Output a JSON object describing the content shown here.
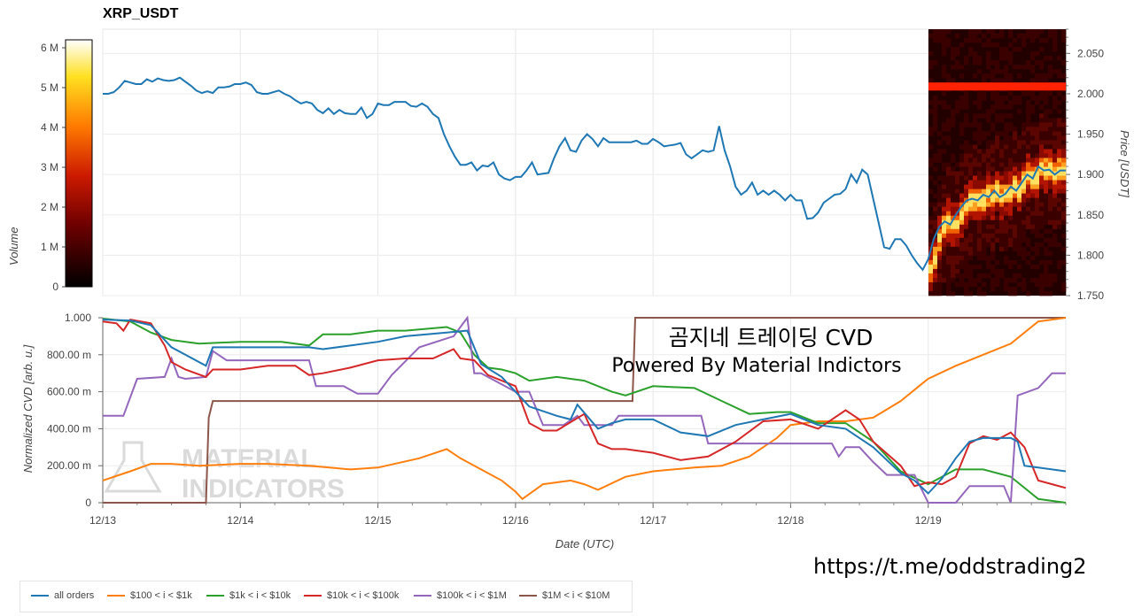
{
  "header": {
    "title": "XRP_USDT"
  },
  "watermark": {
    "line1": "MATERIAL",
    "line2": "INDICATORS"
  },
  "overlay": {
    "korean": "곰지네 트레이딩 CVD",
    "powered": "Powered By Material Indictors"
  },
  "footer": {
    "url": "https://t.me/oddstrading2"
  },
  "colors": {
    "all": "#1f77b4",
    "s100": "#ff7f0e",
    "s1k": "#2ca02c",
    "s10k": "#d62728",
    "s100k": "#9467bd",
    "s1m": "#8c564b"
  },
  "chart_data": [
    {
      "type": "line",
      "title": "XRP_USDT",
      "xlabel": "",
      "ylabel": "Price [USDT]",
      "ylim": [
        1.75,
        2.08
      ],
      "yticks": [
        "2.050",
        "2.000",
        "1.950",
        "1.900",
        "1.850",
        "1.800",
        "1.750"
      ],
      "xlim": [
        0,
        7
      ],
      "colorbar": {
        "label": "Volume",
        "ticks": [
          "6 M",
          "5 M",
          "4 M",
          "3 M",
          "2 M",
          "1 M",
          "0"
        ]
      },
      "series": [
        {
          "name": "price",
          "x": [
            0,
            0.04,
            0.08,
            0.12,
            0.16,
            0.2,
            0.24,
            0.28,
            0.32,
            0.36,
            0.4,
            0.44,
            0.48,
            0.52,
            0.56,
            0.6,
            0.64,
            0.68,
            0.72,
            0.76,
            0.8,
            0.84,
            0.88,
            0.92,
            0.96,
            1.0,
            1.04,
            1.08,
            1.12,
            1.16,
            1.2,
            1.24,
            1.28,
            1.32,
            1.36,
            1.4,
            1.44,
            1.48,
            1.52,
            1.56,
            1.6,
            1.64,
            1.68,
            1.72,
            1.76,
            1.8,
            1.84,
            1.88,
            1.92,
            1.96,
            2.0,
            2.04,
            2.08,
            2.12,
            2.16,
            2.2,
            2.24,
            2.28,
            2.32,
            2.36,
            2.4,
            2.44,
            2.48,
            2.52,
            2.56,
            2.6,
            2.64,
            2.68,
            2.72,
            2.76,
            2.8,
            2.84,
            2.88,
            2.92,
            2.96,
            3.0,
            3.04,
            3.08,
            3.12,
            3.16,
            3.2,
            3.24,
            3.28,
            3.32,
            3.36,
            3.4,
            3.44,
            3.48,
            3.52,
            3.56,
            3.6,
            3.64,
            3.68,
            3.72,
            3.76,
            3.8,
            3.84,
            3.88,
            3.92,
            3.96,
            4.0,
            4.04,
            4.08,
            4.12,
            4.16,
            4.2,
            4.24,
            4.28,
            4.32,
            4.36,
            4.4,
            4.44,
            4.48,
            4.52,
            4.56,
            4.6,
            4.64,
            4.68,
            4.72,
            4.76,
            4.8,
            4.84,
            4.88,
            4.92,
            4.96,
            5.0,
            5.04,
            5.08,
            5.12,
            5.16,
            5.2,
            5.24,
            5.28,
            5.32,
            5.36,
            5.4,
            5.44,
            5.48,
            5.52,
            5.56,
            5.6,
            5.64,
            5.68,
            5.72,
            5.76,
            5.8,
            5.84,
            5.88,
            5.92,
            5.96,
            6.0,
            6.04,
            6.08,
            6.12,
            6.16,
            6.2,
            6.24,
            6.28,
            6.32,
            6.36,
            6.4,
            6.44,
            6.48,
            6.52,
            6.56,
            6.6,
            6.64,
            6.68,
            6.72,
            6.76,
            6.8,
            6.84,
            6.88,
            6.92,
            6.96,
            7.0
          ],
          "values": [
            2.0,
            2.0,
            2.002,
            2.008,
            2.016,
            2.014,
            2.012,
            2.012,
            2.018,
            2.015,
            2.019,
            2.017,
            2.016,
            2.017,
            2.02,
            2.015,
            2.01,
            2.004,
            2.001,
            2.003,
            2.001,
            2.008,
            2.008,
            2.009,
            2.012,
            2.012,
            2.014,
            2.011,
            2.002,
            2.0,
            2.0,
            2.002,
            2.004,
            2.0,
            1.997,
            1.992,
            1.988,
            1.99,
            1.988,
            1.98,
            1.976,
            1.982,
            1.975,
            1.98,
            1.976,
            1.975,
            1.975,
            1.983,
            1.97,
            1.975,
            1.988,
            1.986,
            1.986,
            1.99,
            1.99,
            1.99,
            1.985,
            1.984,
            1.988,
            1.984,
            1.975,
            1.97,
            1.95,
            1.935,
            1.922,
            1.912,
            1.912,
            1.915,
            1.905,
            1.911,
            1.91,
            1.915,
            1.9,
            1.895,
            1.893,
            1.897,
            1.897,
            1.905,
            1.915,
            1.9,
            1.901,
            1.902,
            1.92,
            1.935,
            1.945,
            1.93,
            1.928,
            1.942,
            1.95,
            1.944,
            1.935,
            1.945,
            1.94,
            1.94,
            1.94,
            1.94,
            1.94,
            1.942,
            1.938,
            1.938,
            1.944,
            1.94,
            1.935,
            1.936,
            1.937,
            1.939,
            1.925,
            1.92,
            1.925,
            1.93,
            1.928,
            1.93,
            1.96,
            1.93,
            1.91,
            1.885,
            1.875,
            1.88,
            1.89,
            1.875,
            1.88,
            1.875,
            1.88,
            1.875,
            1.868,
            1.875,
            1.868,
            1.868,
            1.845,
            1.846,
            1.853,
            1.865,
            1.87,
            1.875,
            1.876,
            1.882,
            1.9,
            1.89,
            1.906,
            1.9,
            1.87,
            1.84,
            1.81,
            1.808,
            1.82,
            1.82,
            1.812,
            1.8,
            1.79,
            1.782,
            1.795,
            1.82,
            1.835,
            1.842,
            1.838,
            1.85,
            1.86,
            1.868,
            1.87,
            1.868,
            1.875,
            1.872,
            1.88,
            1.872,
            1.876,
            1.885,
            1.88,
            1.89,
            1.9,
            1.895,
            1.91,
            1.905,
            1.906,
            1.9,
            1.905,
            1.905
          ]
        }
      ]
    },
    {
      "type": "line",
      "title": "",
      "xlabel": "Date (UTC)",
      "ylabel": "Normalized CVD [arb. u.]",
      "ylim": [
        0,
        1
      ],
      "yticks": [
        "1.000",
        "800.00 m",
        "600.00 m",
        "400.00 m",
        "200.00 m",
        "0"
      ],
      "categories": [
        "12/13",
        "12/14",
        "12/15",
        "12/16",
        "12/17",
        "12/18",
        "12/19"
      ],
      "xlim": [
        0,
        7
      ],
      "series": [
        {
          "name": "all orders",
          "x": [
            0,
            0.2,
            0.35,
            0.5,
            0.6,
            0.75,
            0.8,
            1.0,
            1.3,
            1.5,
            1.6,
            1.8,
            2.0,
            2.2,
            2.5,
            2.65,
            2.75,
            2.9,
            3.0,
            3.1,
            3.3,
            3.4,
            3.45,
            3.6,
            3.7,
            3.8,
            4.0,
            4.2,
            4.4,
            4.6,
            4.8,
            5.0,
            5.2,
            5.4,
            5.6,
            5.8,
            5.9,
            6.0,
            6.1,
            6.2,
            6.3,
            6.4,
            6.5,
            6.6,
            6.65,
            6.7,
            6.8,
            6.9,
            7.0
          ],
          "values": [
            0.99,
            0.985,
            0.96,
            0.84,
            0.8,
            0.74,
            0.84,
            0.84,
            0.84,
            0.84,
            0.83,
            0.85,
            0.87,
            0.9,
            0.92,
            0.93,
            0.75,
            0.68,
            0.6,
            0.52,
            0.47,
            0.45,
            0.53,
            0.4,
            0.43,
            0.45,
            0.45,
            0.38,
            0.36,
            0.42,
            0.45,
            0.48,
            0.42,
            0.4,
            0.3,
            0.16,
            0.12,
            0.05,
            0.13,
            0.24,
            0.33,
            0.35,
            0.35,
            0.35,
            0.33,
            0.2,
            0.19,
            0.18,
            0.17
          ]
        },
        {
          "name": "$100 < i < $1k",
          "x": [
            0,
            0.2,
            0.35,
            0.5,
            0.7,
            1.0,
            1.2,
            1.5,
            1.8,
            2.0,
            2.3,
            2.5,
            2.6,
            2.75,
            2.9,
            3.0,
            3.05,
            3.2,
            3.4,
            3.5,
            3.6,
            3.8,
            4.0,
            4.3,
            4.5,
            4.7,
            4.9,
            5.0,
            5.2,
            5.4,
            5.6,
            5.8,
            5.95,
            6.0,
            6.2,
            6.4,
            6.6,
            6.8,
            7.0
          ],
          "values": [
            0.12,
            0.17,
            0.21,
            0.21,
            0.2,
            0.21,
            0.21,
            0.2,
            0.18,
            0.19,
            0.24,
            0.29,
            0.24,
            0.18,
            0.12,
            0.06,
            0.02,
            0.1,
            0.12,
            0.1,
            0.07,
            0.14,
            0.17,
            0.19,
            0.2,
            0.25,
            0.35,
            0.42,
            0.44,
            0.44,
            0.46,
            0.55,
            0.64,
            0.67,
            0.74,
            0.8,
            0.86,
            0.98,
            1.0
          ]
        },
        {
          "name": "$1k < i < $10k",
          "x": [
            0,
            0.2,
            0.35,
            0.5,
            0.7,
            1.0,
            1.3,
            1.5,
            1.6,
            1.8,
            2.0,
            2.2,
            2.5,
            2.6,
            2.7,
            2.8,
            2.9,
            3.0,
            3.1,
            3.3,
            3.5,
            3.7,
            3.8,
            4.0,
            4.3,
            4.5,
            4.7,
            4.9,
            5.0,
            5.2,
            5.4,
            5.6,
            5.8,
            6.0,
            6.2,
            6.4,
            6.6,
            6.8,
            7.0
          ],
          "values": [
            0.995,
            0.98,
            0.92,
            0.88,
            0.86,
            0.87,
            0.87,
            0.85,
            0.91,
            0.91,
            0.93,
            0.93,
            0.95,
            0.92,
            0.8,
            0.73,
            0.72,
            0.7,
            0.66,
            0.68,
            0.66,
            0.6,
            0.58,
            0.63,
            0.62,
            0.55,
            0.48,
            0.49,
            0.49,
            0.43,
            0.43,
            0.33,
            0.17,
            0.1,
            0.18,
            0.18,
            0.14,
            0.02,
            0.0
          ]
        },
        {
          "name": "$10k < i < $100k",
          "x": [
            0,
            0.1,
            0.15,
            0.2,
            0.35,
            0.45,
            0.5,
            0.6,
            0.75,
            0.8,
            1.0,
            1.2,
            1.4,
            1.5,
            1.6,
            1.8,
            2.0,
            2.2,
            2.4,
            2.55,
            2.6,
            2.7,
            2.8,
            2.9,
            3.0,
            3.1,
            3.2,
            3.3,
            3.5,
            3.6,
            3.7,
            3.8,
            4.0,
            4.2,
            4.4,
            4.6,
            4.8,
            5.0,
            5.2,
            5.4,
            5.5,
            5.6,
            5.8,
            5.9,
            6.0,
            6.1,
            6.2,
            6.3,
            6.4,
            6.5,
            6.6,
            6.7,
            6.8,
            6.9,
            7.0
          ],
          "values": [
            0.98,
            0.97,
            0.93,
            0.99,
            0.97,
            0.85,
            0.76,
            0.72,
            0.68,
            0.72,
            0.72,
            0.74,
            0.74,
            0.69,
            0.7,
            0.73,
            0.77,
            0.78,
            0.78,
            0.83,
            0.78,
            0.77,
            0.69,
            0.66,
            0.63,
            0.43,
            0.39,
            0.39,
            0.48,
            0.32,
            0.29,
            0.29,
            0.27,
            0.23,
            0.25,
            0.33,
            0.44,
            0.45,
            0.4,
            0.5,
            0.45,
            0.33,
            0.2,
            0.09,
            0.11,
            0.1,
            0.14,
            0.32,
            0.36,
            0.34,
            0.38,
            0.3,
            0.12,
            0.1,
            0.08
          ]
        },
        {
          "name": "$100k < i < $1M",
          "x": [
            0,
            0.15,
            0.25,
            0.45,
            0.5,
            0.55,
            0.6,
            0.75,
            0.8,
            0.9,
            1.0,
            1.5,
            1.55,
            1.75,
            1.85,
            2.0,
            2.1,
            2.3,
            2.55,
            2.65,
            2.7,
            2.75,
            3.0,
            3.1,
            3.2,
            3.35,
            3.45,
            3.5,
            3.7,
            3.75,
            4.0,
            4.35,
            4.4,
            4.6,
            4.65,
            4.8,
            5.0,
            5.1,
            5.3,
            5.35,
            5.4,
            5.5,
            5.6,
            5.7,
            5.8,
            5.9,
            6.0,
            6.05,
            6.1,
            6.2,
            6.3,
            6.5,
            6.55,
            6.6,
            6.65,
            6.8,
            6.9,
            7.0
          ],
          "values": [
            0.47,
            0.47,
            0.67,
            0.68,
            0.78,
            0.68,
            0.67,
            0.68,
            0.82,
            0.77,
            0.77,
            0.77,
            0.63,
            0.63,
            0.59,
            0.59,
            0.69,
            0.84,
            0.9,
            1.0,
            0.7,
            0.7,
            0.6,
            0.6,
            0.42,
            0.42,
            0.47,
            0.42,
            0.42,
            0.47,
            0.47,
            0.47,
            0.32,
            0.32,
            0.32,
            0.32,
            0.32,
            0.32,
            0.32,
            0.25,
            0.3,
            0.3,
            0.22,
            0.15,
            0.15,
            0.15,
            0.0,
            0.0,
            0.0,
            0.0,
            0.09,
            0.09,
            0.09,
            0.0,
            0.58,
            0.62,
            0.7,
            0.7
          ]
        },
        {
          "name": "$1M < i < $10M",
          "x": [
            0,
            0.75,
            0.77,
            0.8,
            1.5,
            2.0,
            2.5,
            3.0,
            3.5,
            3.85,
            3.87,
            4.0,
            5.0,
            6.0,
            7.0
          ],
          "values": [
            0.0,
            0.0,
            0.46,
            0.55,
            0.55,
            0.55,
            0.55,
            0.55,
            0.55,
            0.55,
            1.0,
            1.0,
            1.0,
            1.0,
            1.0
          ]
        }
      ]
    }
  ]
}
